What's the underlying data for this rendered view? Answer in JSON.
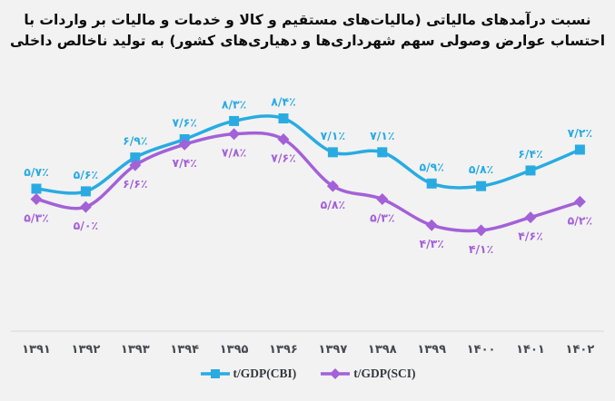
{
  "title": {
    "line1": "نسبت درآمدهای مالیاتی (مالیات‌های مستقیم و کالا و خدمات و مالیات بر واردات با",
    "line2": "احتساب عوارض وصولی سهم شهرداری‌ها و دهیاری‌های کشور) به تولید ناخالص داخلی"
  },
  "colors": {
    "background": "#f2f2f2",
    "title_text": "#0d0d0d",
    "axis_line": "#d6d6d6",
    "tick_text": "#474b52",
    "legend_text": "#33373d",
    "cbi_blue": "#29abe2",
    "sci_purple": "#a361d8"
  },
  "chart_data": {
    "type": "line",
    "smooth": true,
    "title": "نسبت درآمدهای مالیاتی (مالیات‌های مستقیم و کالا و خدمات و مالیات بر واردات با احتساب عوارض وصولی سهم شهرداری‌ها و دهیاری‌های کشور) به تولید ناخالص داخلی",
    "categories": [
      "۱۳۹۱",
      "۱۳۹۲",
      "۱۳۹۳",
      "۱۳۹۴",
      "۱۳۹۵",
      "۱۳۹۶",
      "۱۳۹۷",
      "۱۳۹۸",
      "۱۳۹۹",
      "۱۴۰۰",
      "۱۴۰۱",
      "۱۴۰۲"
    ],
    "series": [
      {
        "name": "t/GDP(CBI)",
        "color": "#29abe2",
        "marker": "square",
        "label_position": "above",
        "values": [
          5.7,
          5.6,
          6.9,
          7.6,
          8.3,
          8.4,
          7.1,
          7.1,
          5.9,
          5.8,
          6.4,
          7.2
        ],
        "labels": [
          "۵/۷٪",
          "۵/۶٪",
          "۶/۹٪",
          "۷/۶٪",
          "۸/۳٪",
          "۸/۴٪",
          "۷/۱٪",
          "۷/۱٪",
          "۵/۹٪",
          "۵/۸٪",
          "۶/۴٪",
          "۷/۲٪"
        ]
      },
      {
        "name": "t/GDP(SCI)",
        "color": "#a361d8",
        "marker": "diamond",
        "label_position": "below",
        "values": [
          5.3,
          5.0,
          6.6,
          7.4,
          7.8,
          7.6,
          5.8,
          5.3,
          4.3,
          4.1,
          4.6,
          5.2
        ],
        "labels": [
          "۵/۳٪",
          "۵/۰٪",
          "۶/۶٪",
          "۷/۴٪",
          "۷/۸٪",
          "۷/۶٪",
          "۵/۸٪",
          "۵/۳٪",
          "۴/۳٪",
          "۴/۱٪",
          "۴/۶٪",
          "۵/۲٪"
        ]
      }
    ],
    "xlabel": "",
    "ylabel": "",
    "ylim": [
      3.5,
      9.0
    ],
    "grid": false,
    "legend_position": "bottom"
  }
}
